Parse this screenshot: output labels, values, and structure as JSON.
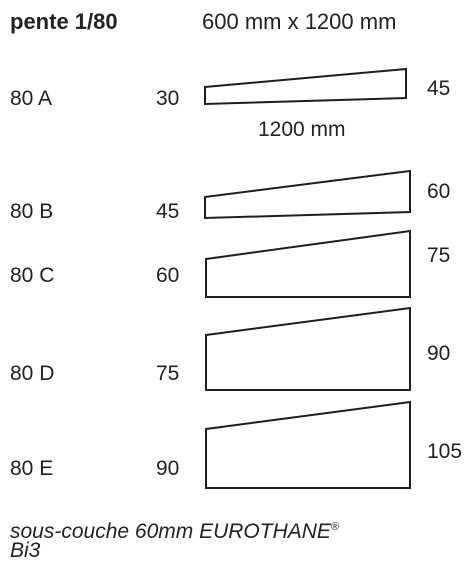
{
  "header": {
    "title": "pente 1/80",
    "dimensions": "600 mm x 1200 mm"
  },
  "length_label": "1200 mm",
  "panels": [
    {
      "code": "80 A",
      "thin_end": "30",
      "thick_end": "45"
    },
    {
      "code": "80 B",
      "thin_end": "45",
      "thick_end": "60"
    },
    {
      "code": "80 C",
      "thin_end": "60",
      "thick_end": "75"
    },
    {
      "code": "80 D",
      "thin_end": "75",
      "thick_end": "90"
    },
    {
      "code": "80 E",
      "thin_end": "90",
      "thick_end": "105"
    }
  ],
  "footer": {
    "line1_prefix": "sous-couche 60mm EUROTHANE",
    "line1_mark": "®",
    "line2": "Bi3"
  },
  "colors": {
    "text": "#222222",
    "stroke": "#1e1e1e",
    "background": "#ffffff"
  }
}
